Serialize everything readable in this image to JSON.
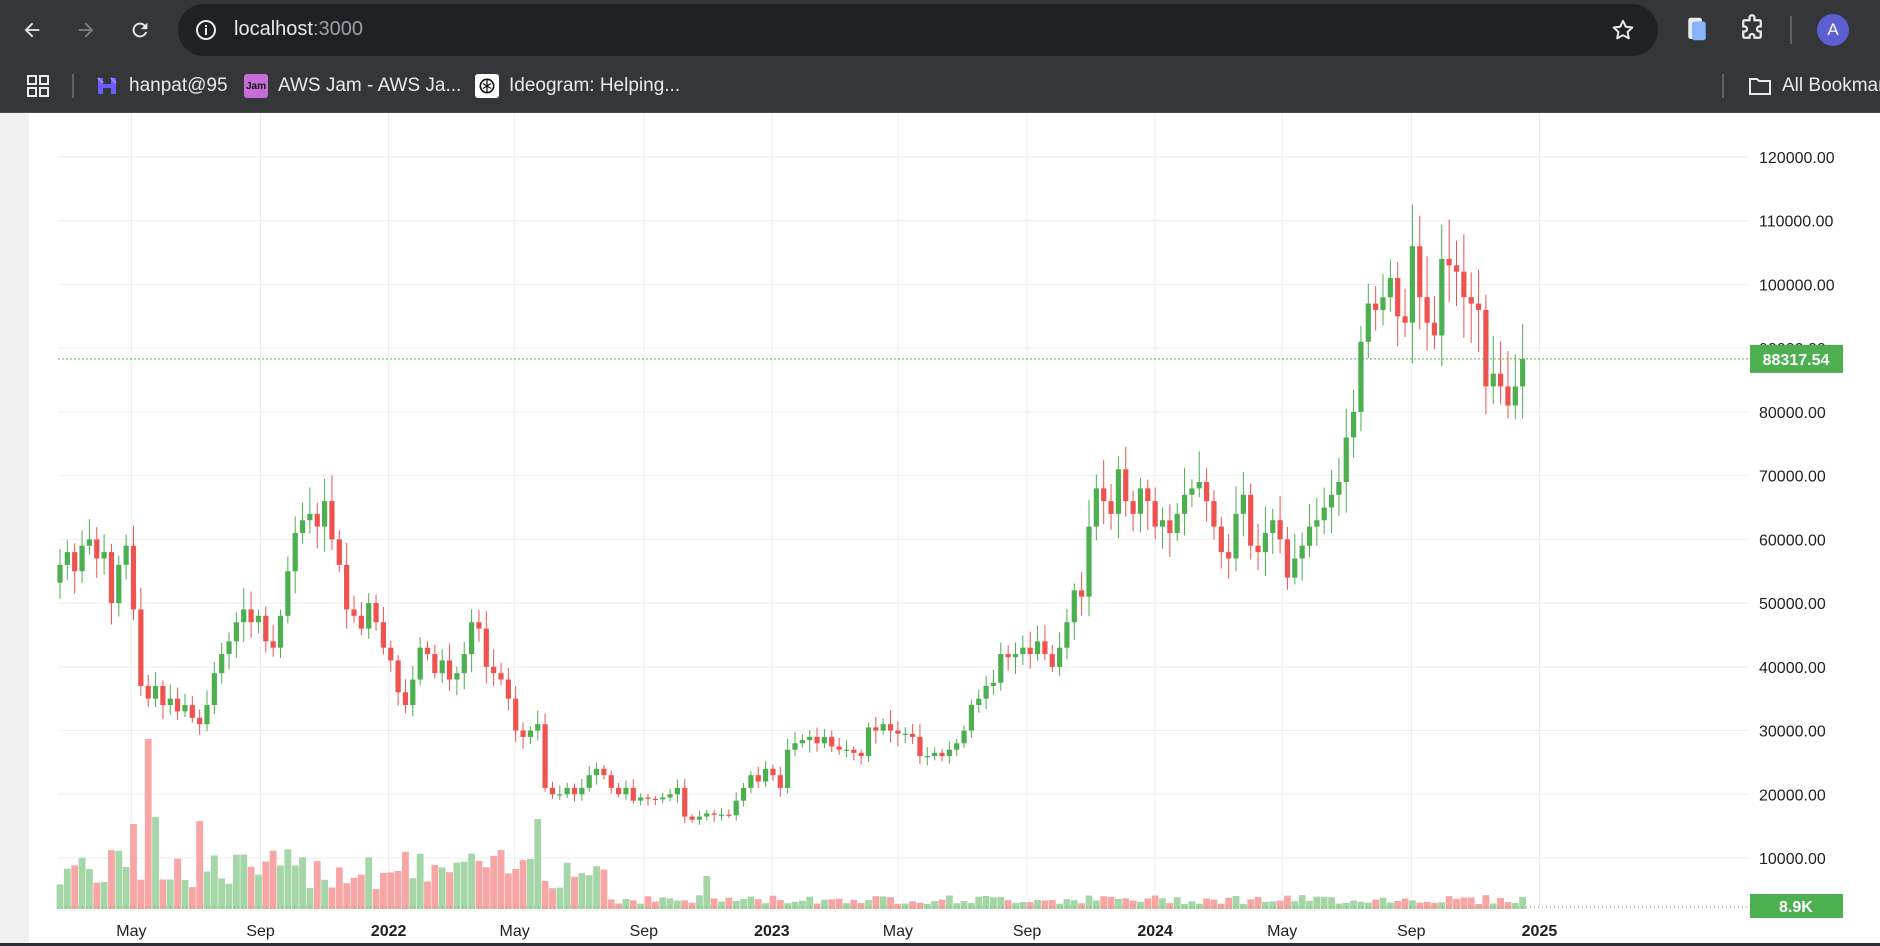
{
  "browser": {
    "url_host": "localhost",
    "url_port": ":3000",
    "avatar_letter": "A",
    "icons": {
      "back": "arrow-left-icon",
      "forward": "arrow-right-icon",
      "reload": "reload-icon",
      "site_info": "info-icon",
      "bookmark_star": "star-icon",
      "extension_1": "clipboard-icon",
      "extensions": "puzzle-icon",
      "apps": "apps-grid-icon"
    }
  },
  "bookmarks": {
    "items": [
      {
        "label": "hanpat@95",
        "icon": "hanpat-logo-icon",
        "color": "#6b5cff"
      },
      {
        "label": "AWS Jam - AWS Ja...",
        "icon": "jam-logo-icon",
        "color": "#c86dd7",
        "badge": "Jam"
      },
      {
        "label": "Ideogram: Helping...",
        "icon": "ideogram-logo-icon",
        "color": "#ffffff"
      }
    ],
    "all_bookmarks_label": "All Bookmar"
  },
  "colors": {
    "up": "#26a69a",
    "up_candle": "#4caf50",
    "down_candle": "#ef5350",
    "up_volume": "#a5d6a7",
    "down_volume": "#f8a5a5",
    "price_line": "#4caf50",
    "grid": "#eeeeee",
    "axis_text": "#1f1f1f"
  },
  "chart_data": {
    "type": "candlestick",
    "interval": "weekly",
    "y_axis": {
      "ticks": [
        "120000.00",
        "110000.00",
        "100000.00",
        "90000.00",
        "80000.00",
        "70000.00",
        "60000.00",
        "50000.00",
        "40000.00",
        "30000.00",
        "20000.00",
        "10000.00"
      ],
      "range": [
        0,
        123000
      ]
    },
    "x_axis": {
      "ticks": [
        {
          "label": "May",
          "date": "2021-05-01",
          "bold": false
        },
        {
          "label": "Sep",
          "date": "2021-09-01",
          "bold": false
        },
        {
          "label": "2022",
          "date": "2022-01-01",
          "bold": true
        },
        {
          "label": "May",
          "date": "2022-05-01",
          "bold": false
        },
        {
          "label": "Sep",
          "date": "2022-09-01",
          "bold": false
        },
        {
          "label": "2023",
          "date": "2023-01-01",
          "bold": true
        },
        {
          "label": "May",
          "date": "2023-05-01",
          "bold": false
        },
        {
          "label": "Sep",
          "date": "2023-09-01",
          "bold": false
        },
        {
          "label": "2024",
          "date": "2024-01-01",
          "bold": true
        },
        {
          "label": "May",
          "date": "2024-05-01",
          "bold": false
        },
        {
          "label": "Sep",
          "date": "2024-09-01",
          "bold": false
        },
        {
          "label": "2025",
          "date": "2025-01-01",
          "bold": true
        }
      ]
    },
    "last_price": 88317.54,
    "last_price_label": "88317.54",
    "last_volume_label": "8.9K",
    "close_series": [
      56000,
      58000,
      55000,
      59000,
      60000,
      57000,
      58000,
      50000,
      56000,
      59000,
      49000,
      37000,
      35000,
      37000,
      34000,
      35000,
      33000,
      34000,
      32000,
      31000,
      34000,
      39000,
      42000,
      44000,
      47000,
      49000,
      47000,
      48000,
      44000,
      43000,
      48000,
      55000,
      61000,
      63000,
      64000,
      62000,
      66000,
      60000,
      56000,
      49000,
      48000,
      46000,
      50000,
      47000,
      43000,
      41000,
      36000,
      34000,
      38000,
      43000,
      42000,
      39000,
      41000,
      38000,
      39000,
      42000,
      47000,
      46000,
      40000,
      39000,
      38000,
      35000,
      30000,
      29000,
      30000,
      31000,
      21000,
      20000,
      20000,
      21000,
      20000,
      21000,
      23000,
      24000,
      23000,
      21000,
      20000,
      21000,
      19000,
      19500,
      19300,
      19200,
      19500,
      20000,
      21000,
      16500,
      16000,
      16500,
      17000,
      16800,
      16800,
      16700,
      19000,
      21000,
      23000,
      22000,
      24000,
      23000,
      21000,
      27000,
      28000,
      28500,
      29000,
      28000,
      29000,
      27500,
      27000,
      27000,
      26500,
      26000,
      30500,
      30000,
      31000,
      30000,
      29500,
      29500,
      29000,
      26000,
      26000,
      26500,
      26000,
      27000,
      28000,
      30000,
      34000,
      35000,
      37000,
      37500,
      42000,
      41500,
      42000,
      43000,
      42000,
      44000,
      42000,
      40000,
      43000,
      47000,
      52000,
      51000,
      62000,
      68000,
      66000,
      64000,
      71000,
      66000,
      64000,
      68000,
      66000,
      62000,
      63000,
      61000,
      64000,
      67000,
      68000,
      69000,
      66000,
      62000,
      58000,
      57000,
      64000,
      67000,
      59000,
      58000,
      61000,
      63000,
      60000,
      54000,
      57000,
      59000,
      62000,
      63000,
      65000,
      67000,
      69000,
      76000,
      80000,
      91000,
      97000,
      96000,
      98000,
      101000,
      95000,
      94000,
      106000,
      98000,
      94000,
      92000,
      104000,
      103000,
      102000,
      98000,
      97000,
      96000,
      84000,
      86000,
      84000,
      81000,
      84000,
      88317.54
    ]
  }
}
